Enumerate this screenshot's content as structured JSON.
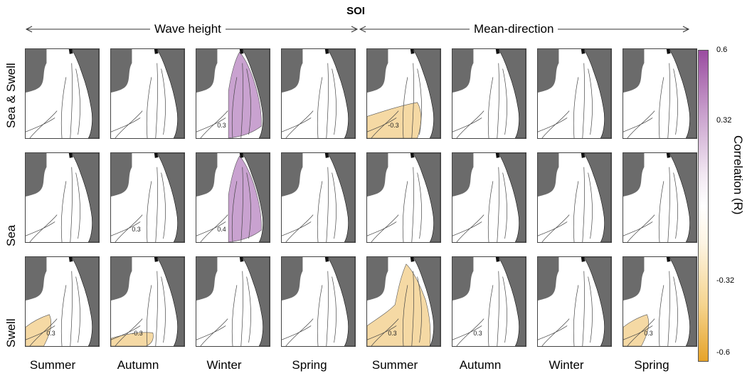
{
  "figure": {
    "title": "SOI",
    "groups": [
      "Wave height",
      "Mean-direction"
    ],
    "rows": [
      "Sea & Swell",
      "Sea",
      "Swell"
    ],
    "columns": [
      "Summer",
      "Autumn",
      "Winter",
      "Spring",
      "Summer",
      "Autumn",
      "Winter",
      "Spring"
    ]
  },
  "colorbar": {
    "label": "Correlation (R)",
    "ticks": [
      "0.6",
      "0.32",
      "-0.32",
      "-0.6"
    ],
    "colors": {
      "positive": "#c9a2d0",
      "negative": "#f5d9a4",
      "land": "#6b6b6b"
    }
  },
  "contours": {
    "labels": [
      "0.3",
      "0.4"
    ]
  },
  "panels": [
    {
      "row": 0,
      "col": 0,
      "fill": null,
      "label": ""
    },
    {
      "row": 0,
      "col": 1,
      "fill": null,
      "label": ""
    },
    {
      "row": 0,
      "col": 2,
      "fill": "positive",
      "label": "0.3"
    },
    {
      "row": 0,
      "col": 3,
      "fill": null,
      "label": ""
    },
    {
      "row": 0,
      "col": 4,
      "fill": "negative-south",
      "label": "-0.3"
    },
    {
      "row": 0,
      "col": 5,
      "fill": null,
      "label": ""
    },
    {
      "row": 0,
      "col": 6,
      "fill": null,
      "label": ""
    },
    {
      "row": 0,
      "col": 7,
      "fill": null,
      "label": ""
    },
    {
      "row": 1,
      "col": 0,
      "fill": null,
      "label": ""
    },
    {
      "row": 1,
      "col": 1,
      "fill": null,
      "label": "0.3"
    },
    {
      "row": 1,
      "col": 2,
      "fill": "positive",
      "label": "0.4"
    },
    {
      "row": 1,
      "col": 3,
      "fill": null,
      "label": ""
    },
    {
      "row": 1,
      "col": 4,
      "fill": null,
      "label": ""
    },
    {
      "row": 1,
      "col": 5,
      "fill": null,
      "label": ""
    },
    {
      "row": 1,
      "col": 6,
      "fill": null,
      "label": ""
    },
    {
      "row": 1,
      "col": 7,
      "fill": null,
      "label": ""
    },
    {
      "row": 2,
      "col": 0,
      "fill": "negative-sw",
      "label": "0.3"
    },
    {
      "row": 2,
      "col": 1,
      "fill": "negative-faint",
      "label": "-0.3"
    },
    {
      "row": 2,
      "col": 2,
      "fill": null,
      "label": ""
    },
    {
      "row": 2,
      "col": 3,
      "fill": null,
      "label": ""
    },
    {
      "row": 2,
      "col": 4,
      "fill": "negative-full",
      "label": "0.3"
    },
    {
      "row": 2,
      "col": 5,
      "fill": null,
      "label": "0.3"
    },
    {
      "row": 2,
      "col": 6,
      "fill": null,
      "label": ""
    },
    {
      "row": 2,
      "col": 7,
      "fill": "negative-sw",
      "label": "0.3"
    }
  ]
}
